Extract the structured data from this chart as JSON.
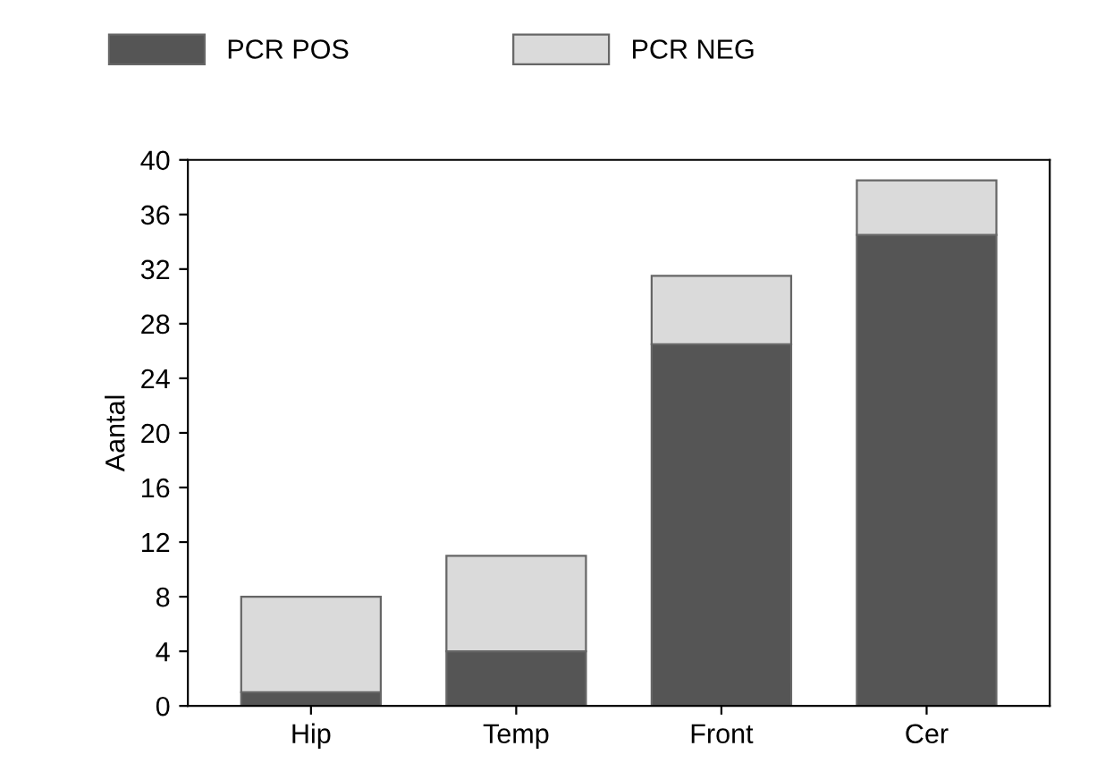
{
  "chart_data": {
    "type": "bar",
    "stacked": true,
    "ylabel": "Aantal",
    "categories": [
      "Hip",
      "Temp",
      "Front",
      "Cer"
    ],
    "series": [
      {
        "name": "PCR POS",
        "color": "#555555",
        "values": [
          1,
          4,
          26.5,
          34.5
        ]
      },
      {
        "name": "PCR NEG",
        "color": "#dadada",
        "values": [
          7,
          7,
          5,
          4
        ]
      }
    ],
    "ylim": [
      0,
      40
    ],
    "yticks": [
      0,
      4,
      8,
      12,
      16,
      20,
      24,
      28,
      32,
      36,
      40
    ],
    "grid": false,
    "legend": "top"
  }
}
